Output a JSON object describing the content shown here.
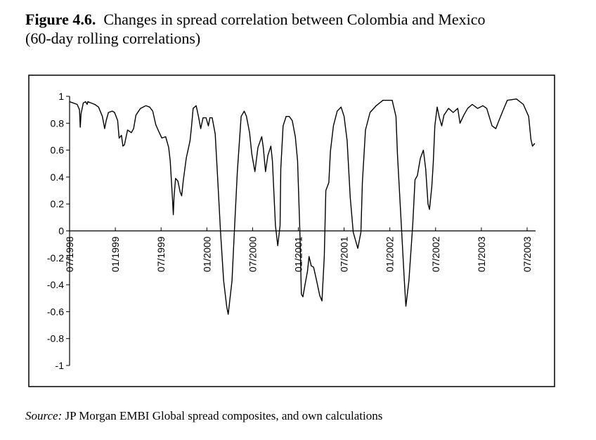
{
  "figure": {
    "label": "Figure 4.6.",
    "title_line1": "Changes in spread correlation between Colombia and Mexico",
    "title_line2": "(60-day rolling correlations)",
    "source_label": "Source:",
    "source_text": "JP Morgan EMBI Global spread composites, and own calculations"
  },
  "chart_data": {
    "type": "line",
    "title": "Changes in spread correlation between Colombia and Mexico (60-day rolling correlations)",
    "xlabel": "",
    "ylabel": "",
    "ylim": [
      -1,
      1
    ],
    "yticks": [
      1,
      0.8,
      0.6,
      0.4,
      0.2,
      0,
      -0.2,
      -0.4,
      -0.6,
      -0.8,
      -1
    ],
    "ytick_labels": [
      "1",
      "0.8",
      "0.6",
      "0.4",
      "0.2",
      "0",
      "-0.2",
      "-0.4",
      "-0.6",
      "-0.8",
      "-1"
    ],
    "x_unit": "months since 07/1998",
    "xlim": [
      0,
      61.1
    ],
    "xticks": [
      0,
      6,
      12,
      18,
      24,
      30,
      36,
      42,
      48,
      54,
      60
    ],
    "xtick_labels": [
      "07/1998",
      "01/1999",
      "07/1999",
      "01/2000",
      "07/2000",
      "01/2001",
      "07/2001",
      "01/2002",
      "07/2002",
      "01/2003",
      "07/2003"
    ],
    "grid": false,
    "legend": "none",
    "series": [
      {
        "name": "Colombia-Mexico 60-day rolling spread correlation",
        "color": "#000000",
        "points": [
          [
            0.0,
            0.96
          ],
          [
            1.0,
            0.94
          ],
          [
            1.3,
            0.9
          ],
          [
            1.4,
            0.77
          ],
          [
            1.5,
            0.87
          ],
          [
            1.8,
            0.95
          ],
          [
            2.1,
            0.96
          ],
          [
            2.3,
            0.94
          ],
          [
            2.4,
            0.96
          ],
          [
            3.3,
            0.94
          ],
          [
            3.8,
            0.92
          ],
          [
            4.3,
            0.85
          ],
          [
            4.6,
            0.76
          ],
          [
            4.8,
            0.82
          ],
          [
            5.1,
            0.88
          ],
          [
            5.6,
            0.89
          ],
          [
            5.9,
            0.88
          ],
          [
            6.3,
            0.82
          ],
          [
            6.5,
            0.69
          ],
          [
            6.8,
            0.71
          ],
          [
            7.0,
            0.63
          ],
          [
            7.2,
            0.64
          ],
          [
            7.6,
            0.75
          ],
          [
            8.1,
            0.73
          ],
          [
            8.4,
            0.76
          ],
          [
            8.7,
            0.86
          ],
          [
            9.3,
            0.91
          ],
          [
            10.0,
            0.93
          ],
          [
            10.5,
            0.92
          ],
          [
            10.9,
            0.89
          ],
          [
            11.3,
            0.79
          ],
          [
            11.6,
            0.75
          ],
          [
            12.1,
            0.69
          ],
          [
            12.6,
            0.7
          ],
          [
            13.0,
            0.62
          ],
          [
            13.2,
            0.52
          ],
          [
            13.5,
            0.23
          ],
          [
            13.6,
            0.12
          ],
          [
            13.7,
            0.25
          ],
          [
            13.9,
            0.39
          ],
          [
            14.2,
            0.37
          ],
          [
            14.5,
            0.29
          ],
          [
            14.7,
            0.26
          ],
          [
            14.9,
            0.37
          ],
          [
            15.3,
            0.54
          ],
          [
            15.8,
            0.67
          ],
          [
            16.0,
            0.78
          ],
          [
            16.2,
            0.91
          ],
          [
            16.6,
            0.93
          ],
          [
            16.9,
            0.85
          ],
          [
            17.2,
            0.76
          ],
          [
            17.5,
            0.84
          ],
          [
            17.9,
            0.84
          ],
          [
            18.2,
            0.78
          ],
          [
            18.4,
            0.84
          ],
          [
            18.7,
            0.84
          ],
          [
            19.1,
            0.72
          ],
          [
            19.4,
            0.41
          ],
          [
            19.8,
            -0.01
          ],
          [
            20.2,
            -0.37
          ],
          [
            20.6,
            -0.56
          ],
          [
            20.8,
            -0.62
          ],
          [
            21.3,
            -0.37
          ],
          [
            21.6,
            -0.01
          ],
          [
            22.0,
            0.44
          ],
          [
            22.5,
            0.85
          ],
          [
            22.9,
            0.89
          ],
          [
            23.2,
            0.85
          ],
          [
            23.6,
            0.73
          ],
          [
            23.9,
            0.57
          ],
          [
            24.3,
            0.44
          ],
          [
            24.7,
            0.62
          ],
          [
            25.2,
            0.7
          ],
          [
            25.4,
            0.62
          ],
          [
            25.7,
            0.44
          ],
          [
            26.0,
            0.56
          ],
          [
            26.4,
            0.63
          ],
          [
            26.6,
            0.52
          ],
          [
            27.0,
            0.04
          ],
          [
            27.3,
            -0.11
          ],
          [
            27.6,
            0.04
          ],
          [
            27.7,
            0.46
          ],
          [
            28.0,
            0.78
          ],
          [
            28.4,
            0.85
          ],
          [
            28.8,
            0.85
          ],
          [
            29.2,
            0.82
          ],
          [
            29.6,
            0.7
          ],
          [
            29.9,
            0.52
          ],
          [
            30.2,
            -0.01
          ],
          [
            30.4,
            -0.47
          ],
          [
            30.6,
            -0.49
          ],
          [
            30.9,
            -0.39
          ],
          [
            31.2,
            -0.3
          ],
          [
            31.4,
            -0.19
          ],
          [
            31.7,
            -0.26
          ],
          [
            32.0,
            -0.27
          ],
          [
            32.4,
            -0.37
          ],
          [
            32.8,
            -0.48
          ],
          [
            33.1,
            -0.52
          ],
          [
            33.4,
            -0.19
          ],
          [
            33.6,
            0.3
          ],
          [
            34.0,
            0.36
          ],
          [
            34.2,
            0.59
          ],
          [
            34.6,
            0.78
          ],
          [
            35.1,
            0.89
          ],
          [
            35.6,
            0.92
          ],
          [
            36.0,
            0.85
          ],
          [
            36.4,
            0.67
          ],
          [
            36.8,
            0.25
          ],
          [
            37.2,
            -0.01
          ],
          [
            37.8,
            -0.13
          ],
          [
            38.2,
            -0.01
          ],
          [
            38.4,
            0.36
          ],
          [
            38.8,
            0.75
          ],
          [
            39.4,
            0.88
          ],
          [
            40.2,
            0.93
          ],
          [
            41.1,
            0.97
          ],
          [
            42.3,
            0.97
          ],
          [
            42.8,
            0.85
          ],
          [
            43.0,
            0.57
          ],
          [
            43.4,
            0.15
          ],
          [
            43.9,
            -0.37
          ],
          [
            44.1,
            -0.56
          ],
          [
            44.5,
            -0.37
          ],
          [
            45.0,
            0.05
          ],
          [
            45.3,
            0.38
          ],
          [
            45.6,
            0.41
          ],
          [
            46.0,
            0.54
          ],
          [
            46.4,
            0.6
          ],
          [
            46.7,
            0.46
          ],
          [
            47.0,
            0.2
          ],
          [
            47.2,
            0.16
          ],
          [
            47.5,
            0.33
          ],
          [
            47.7,
            0.51
          ],
          [
            47.9,
            0.78
          ],
          [
            48.2,
            0.92
          ],
          [
            48.5,
            0.84
          ],
          [
            48.8,
            0.78
          ],
          [
            49.1,
            0.86
          ],
          [
            49.7,
            0.91
          ],
          [
            50.3,
            0.88
          ],
          [
            50.9,
            0.91
          ],
          [
            51.2,
            0.8
          ],
          [
            51.7,
            0.86
          ],
          [
            52.2,
            0.91
          ],
          [
            52.8,
            0.94
          ],
          [
            53.5,
            0.91
          ],
          [
            54.2,
            0.93
          ],
          [
            54.7,
            0.91
          ],
          [
            55.4,
            0.78
          ],
          [
            55.9,
            0.76
          ],
          [
            56.3,
            0.82
          ],
          [
            56.8,
            0.89
          ],
          [
            57.4,
            0.97
          ],
          [
            58.6,
            0.98
          ],
          [
            59.5,
            0.94
          ],
          [
            60.2,
            0.85
          ],
          [
            60.5,
            0.68
          ],
          [
            60.7,
            0.63
          ],
          [
            61.0,
            0.65
          ]
        ]
      }
    ]
  }
}
